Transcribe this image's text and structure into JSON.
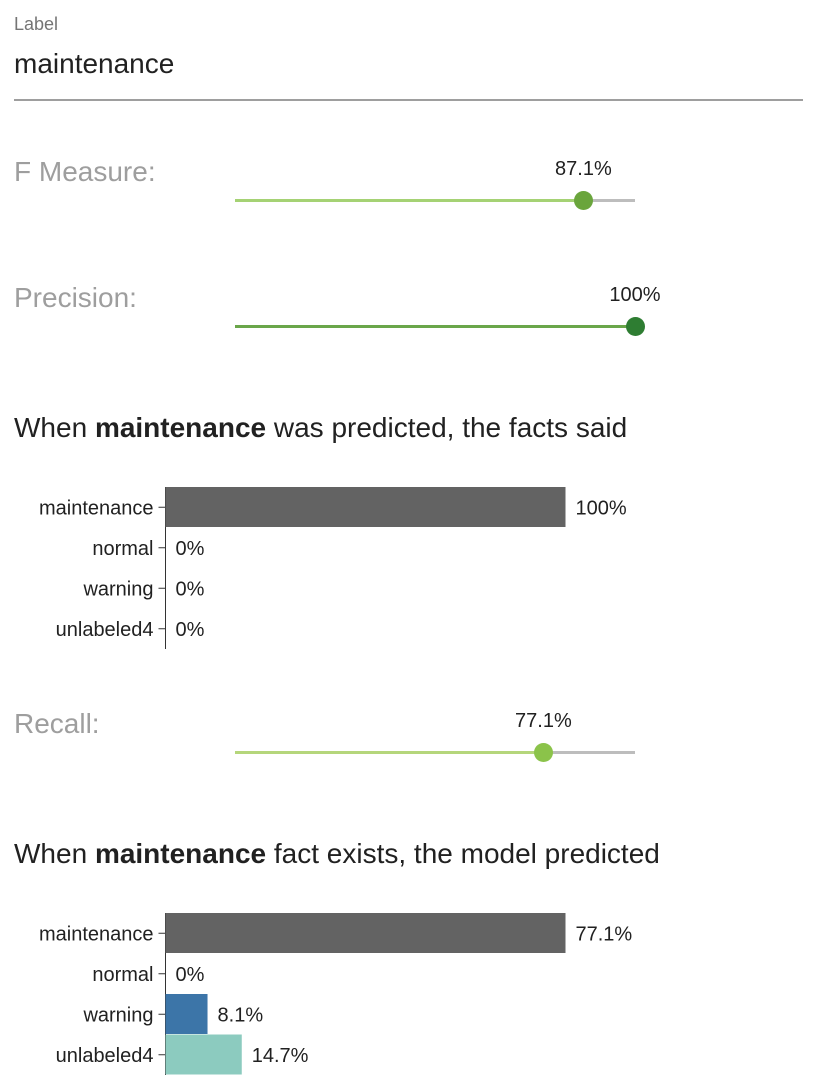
{
  "label_field": {
    "caption": "Label",
    "value": "maintenance"
  },
  "metrics": {
    "f_measure": {
      "label": "F Measure:",
      "value_text": "87.1%",
      "fraction": 0.871,
      "fill_color": "#a5d274",
      "thumb_color": "#6aa53c"
    },
    "precision": {
      "label": "Precision:",
      "value_text": "100%",
      "fraction": 1.0,
      "fill_color": "#6aa64a",
      "thumb_color": "#2e7d32"
    },
    "recall": {
      "label": "Recall:",
      "value_text": "77.1%",
      "fraction": 0.771,
      "fill_color": "#b5d67b",
      "thumb_color": "#8bc34a"
    }
  },
  "precision_section": {
    "title_pre": "When ",
    "title_bold": "maintenance",
    "title_post": " was predicted, the facts said"
  },
  "recall_section": {
    "title_pre": "When ",
    "title_bold": "maintenance",
    "title_post": " fact exists, the model predicted"
  },
  "chart_data": [
    {
      "type": "bar",
      "orientation": "horizontal",
      "categories": [
        "maintenance",
        "normal",
        "warning",
        "unlabeled4"
      ],
      "values": [
        100,
        0,
        0,
        0
      ],
      "value_labels": [
        "100%",
        "0%",
        "0%",
        "0%"
      ],
      "colors": [
        "#636363",
        "#636363",
        "#636363",
        "#636363"
      ],
      "xlim": [
        0,
        100
      ]
    },
    {
      "type": "bar",
      "orientation": "horizontal",
      "categories": [
        "maintenance",
        "normal",
        "warning",
        "unlabeled4"
      ],
      "values": [
        77.1,
        0,
        8.1,
        14.7
      ],
      "value_labels": [
        "77.1%",
        "0%",
        "8.1%",
        "14.7%"
      ],
      "colors": [
        "#636363",
        "#636363",
        "#3c75a8",
        "#8ccbbf"
      ],
      "xlim": [
        0,
        77.1
      ]
    }
  ]
}
